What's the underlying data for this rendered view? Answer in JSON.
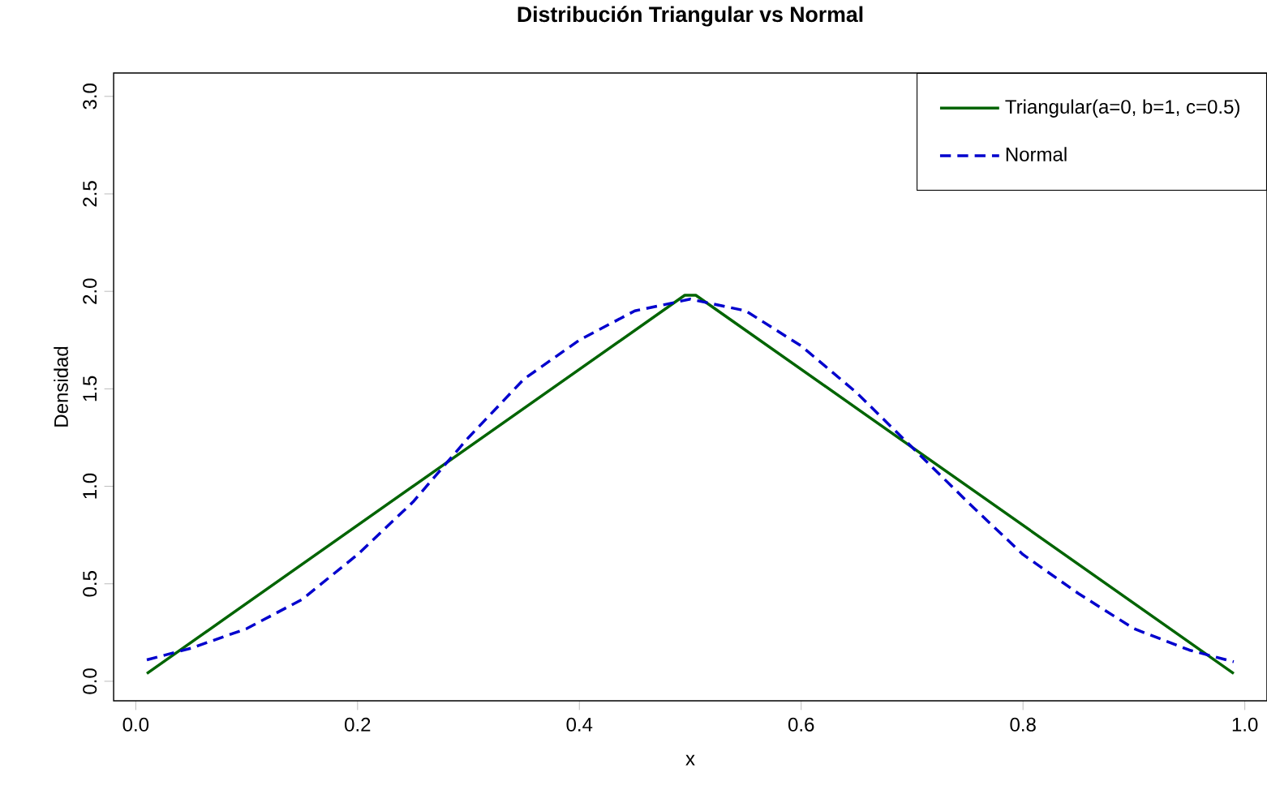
{
  "chart_data": {
    "type": "line",
    "title": "Distribución Triangular vs Normal",
    "xlabel": "x",
    "ylabel": "Densidad",
    "xlim": [
      -0.02,
      1.02
    ],
    "ylim": [
      -0.1,
      3.12
    ],
    "xticks": [
      {
        "value": 0,
        "label": "0.0"
      },
      {
        "value": 0.2,
        "label": "0.2"
      },
      {
        "value": 0.4,
        "label": "0.4"
      },
      {
        "value": 0.6,
        "label": "0.6"
      },
      {
        "value": 0.8,
        "label": "0.8"
      },
      {
        "value": 1,
        "label": "1.0"
      }
    ],
    "yticks": [
      {
        "value": 0,
        "label": "0.0"
      },
      {
        "value": 0.5,
        "label": "0.5"
      },
      {
        "value": 1,
        "label": "1.0"
      },
      {
        "value": 1.5,
        "label": "1.5"
      },
      {
        "value": 2,
        "label": "2.0"
      },
      {
        "value": 2.5,
        "label": "2.5"
      },
      {
        "value": 3,
        "label": "3.0"
      }
    ],
    "legend": "top right",
    "marker": "none",
    "series": [
      {
        "name": "Triangular(a=0, b=1, c=0.5)",
        "color": "#006400",
        "line_style": "solid",
        "x": [
          0.01,
          0.495,
          0.505,
          0.99
        ],
        "values": [
          0.04,
          1.98,
          1.98,
          0.04
        ]
      },
      {
        "name": "Normal",
        "color": "#0000cd",
        "line_style": "dashed",
        "x": [
          0.01,
          0.05,
          0.1,
          0.15,
          0.2,
          0.25,
          0.3,
          0.35,
          0.4,
          0.45,
          0.5,
          0.55,
          0.6,
          0.65,
          0.7,
          0.75,
          0.8,
          0.85,
          0.9,
          0.95,
          0.99
        ],
        "values": [
          0.11,
          0.17,
          0.27,
          0.42,
          0.65,
          0.92,
          1.25,
          1.55,
          1.75,
          1.9,
          1.96,
          1.9,
          1.72,
          1.48,
          1.2,
          0.92,
          0.65,
          0.45,
          0.27,
          0.16,
          0.1
        ]
      }
    ]
  }
}
